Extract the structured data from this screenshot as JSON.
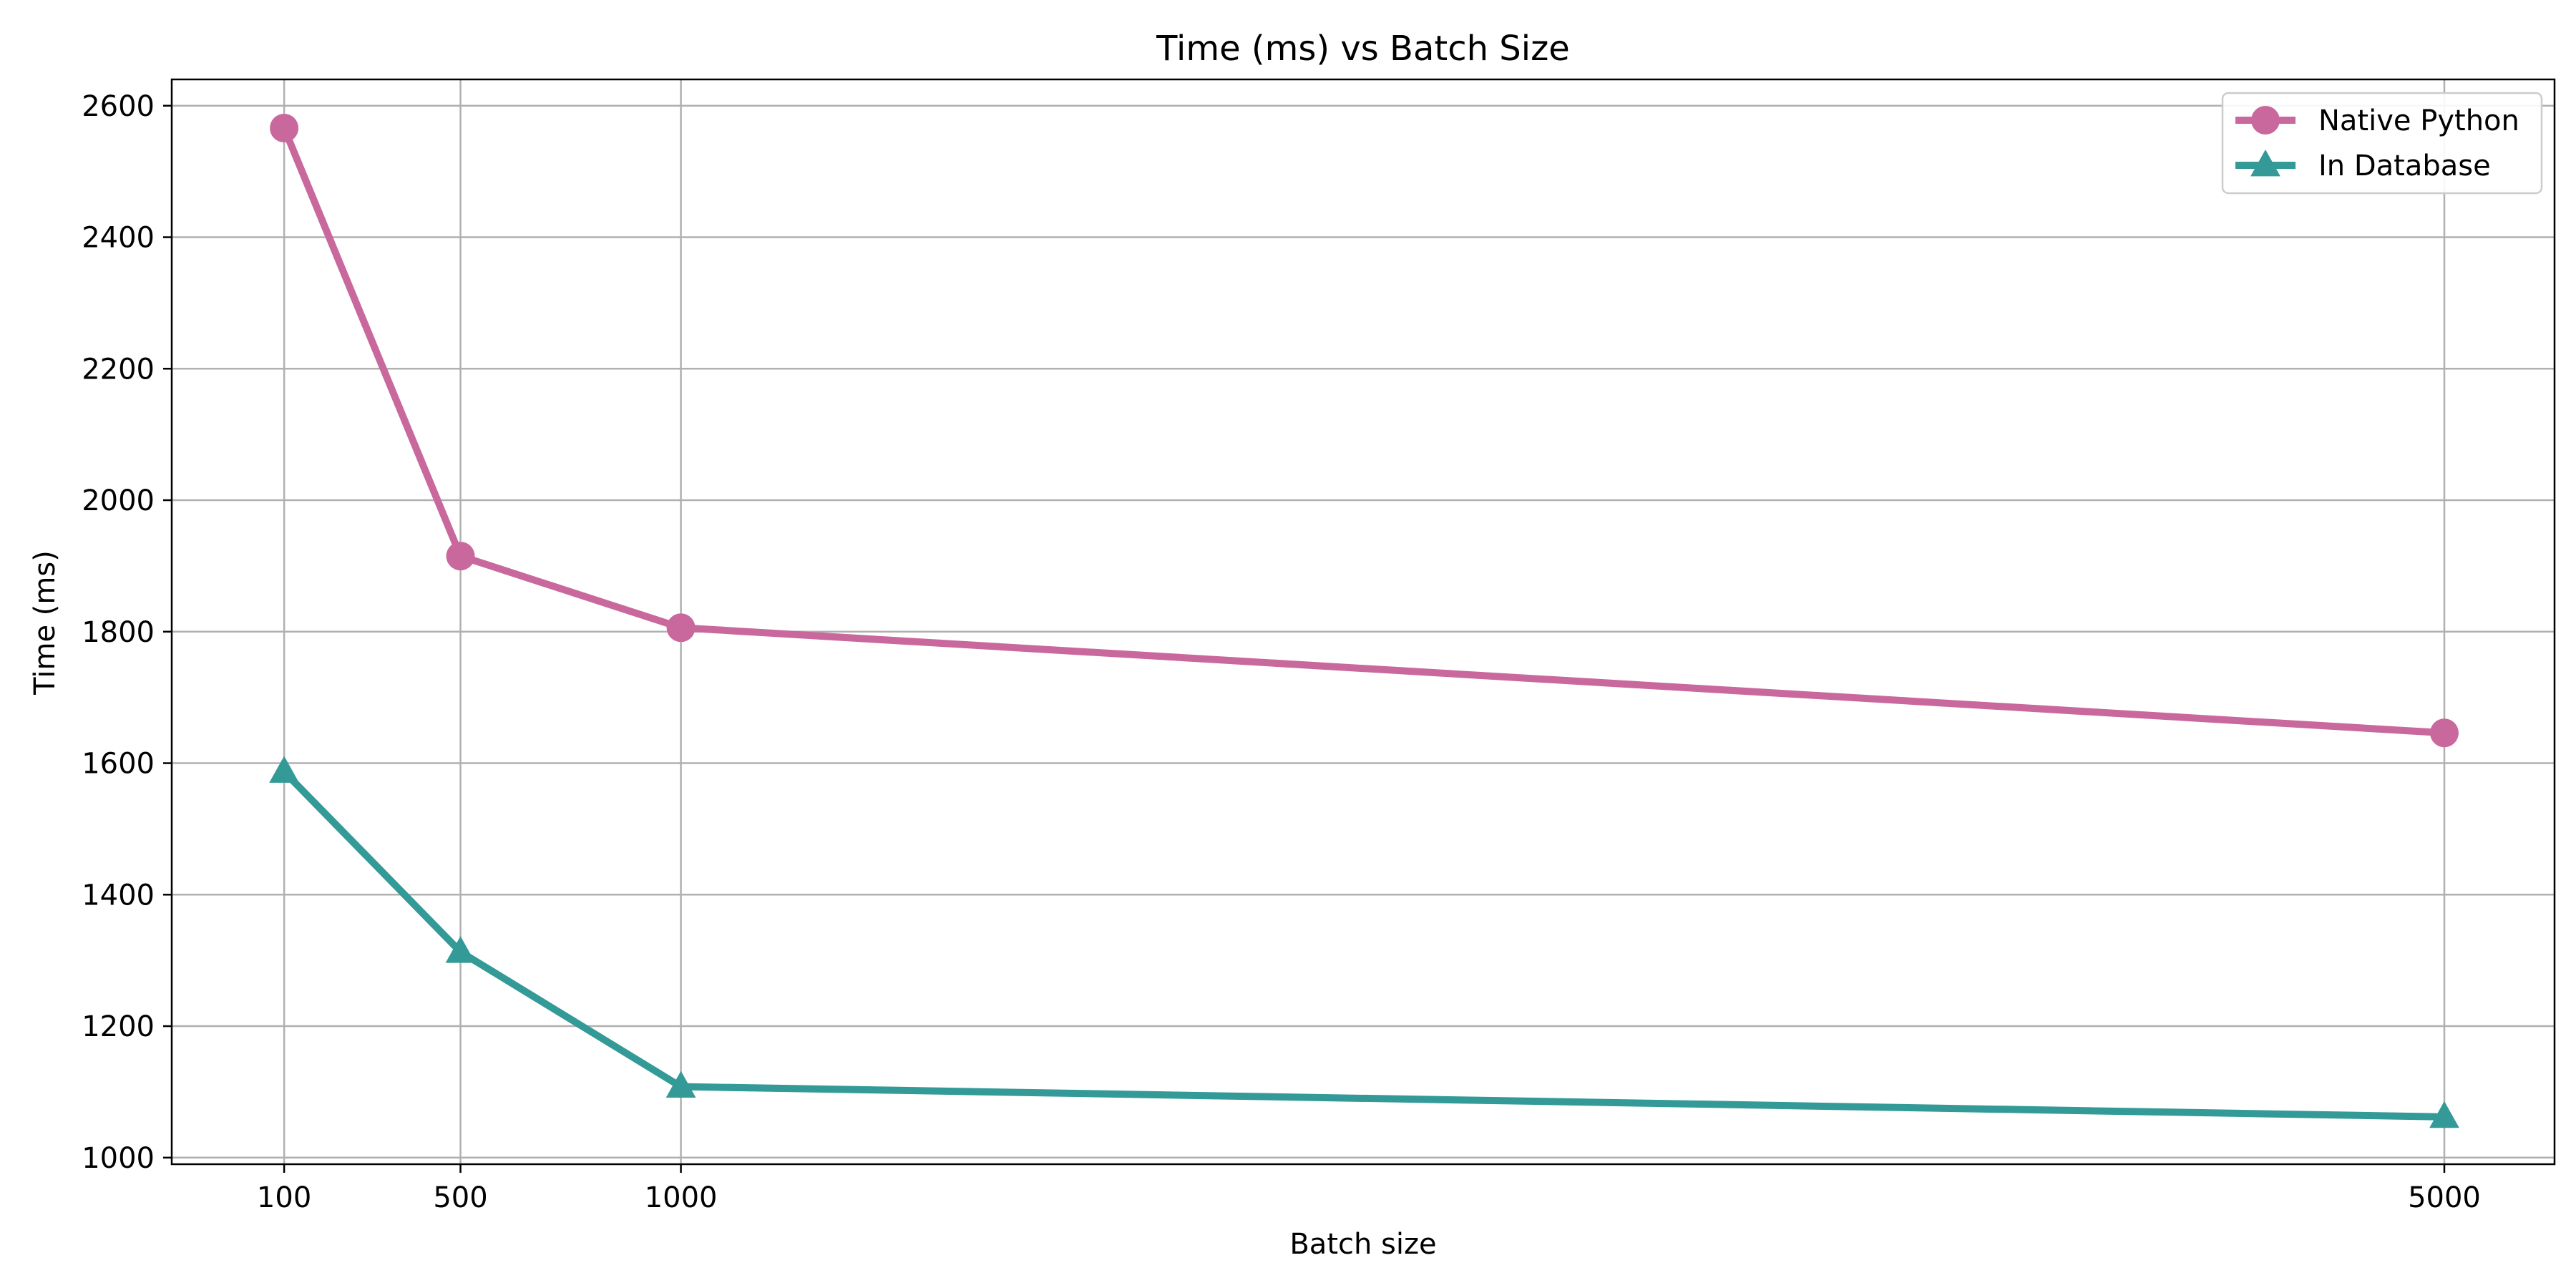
{
  "chart_data": {
    "type": "line",
    "title": "Time (ms) vs Batch Size",
    "xlabel": "Batch size",
    "ylabel": "Time (ms)",
    "x": [
      100,
      500,
      1000,
      5000
    ],
    "x_tick_labels": [
      "100",
      "500",
      "1000",
      "5000"
    ],
    "xlim": [
      -155,
      5250
    ],
    "ylim": [
      990,
      2640
    ],
    "y_ticks": [
      1000,
      1200,
      1400,
      1600,
      1800,
      2000,
      2200,
      2400,
      2600
    ],
    "y_tick_labels": [
      "1000",
      "1200",
      "1400",
      "1600",
      "1800",
      "2000",
      "2200",
      "2400",
      "2600"
    ],
    "grid": true,
    "legend_position": "top-right",
    "series": [
      {
        "name": "Native Python",
        "values": [
          2566,
          1915,
          1806,
          1646
        ],
        "color": "#c9689d",
        "marker": "circle"
      },
      {
        "name": "In Database",
        "values": [
          1587,
          1313,
          1108,
          1062
        ],
        "color": "#339a97",
        "marker": "triangle"
      }
    ]
  }
}
